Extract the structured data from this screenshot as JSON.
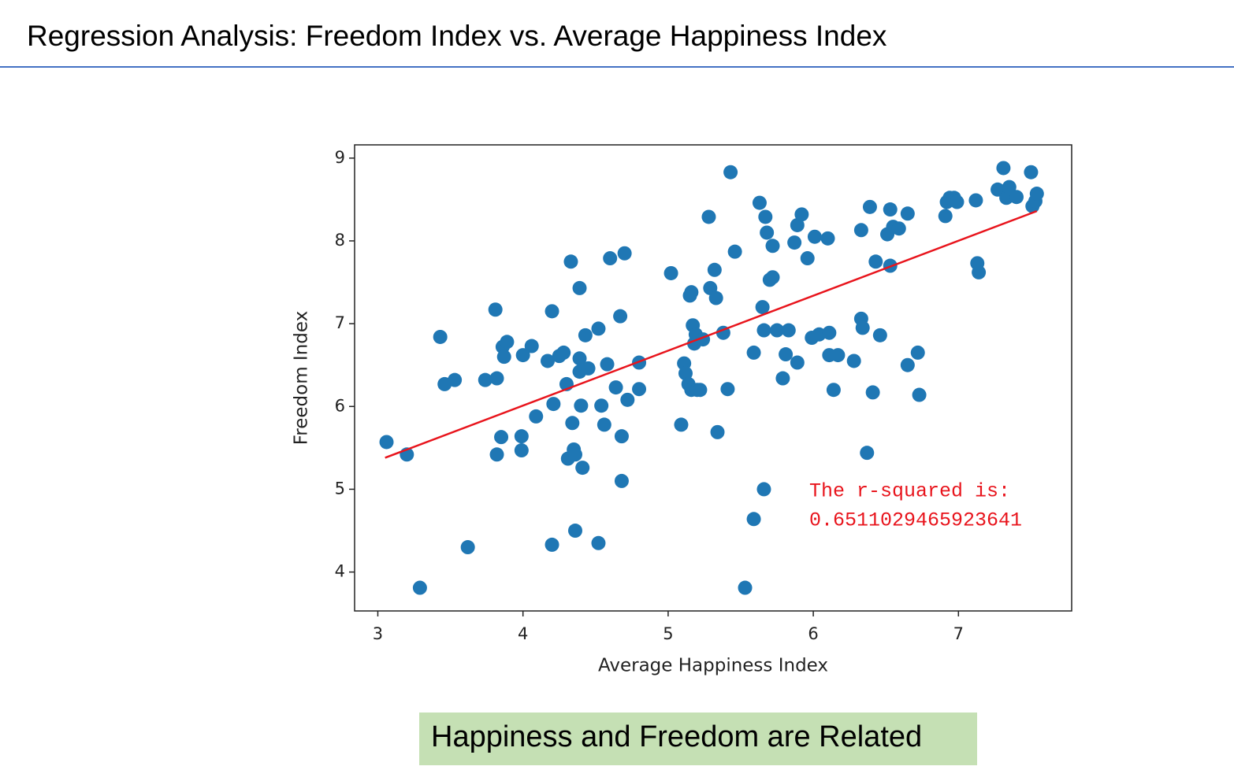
{
  "header": {
    "title": "Regression Analysis:  Freedom Index vs. Average Happiness Index"
  },
  "chart_data": {
    "type": "scatter",
    "x_label": "Average Happiness Index",
    "y_label": "Freedom Index",
    "xlim": [
      2.84,
      7.78
    ],
    "ylim": [
      3.53,
      9.16
    ],
    "xticks": [
      3,
      4,
      5,
      6,
      7
    ],
    "yticks": [
      4,
      5,
      6,
      7,
      8,
      9
    ],
    "color": "#1f77b4",
    "x": [
      3.06,
      3.2,
      3.29,
      3.43,
      3.46,
      3.53,
      3.62,
      3.74,
      3.81,
      3.82,
      3.82,
      3.85,
      3.86,
      3.87,
      3.89,
      3.99,
      3.99,
      4.0,
      4.06,
      4.09,
      4.17,
      4.2,
      4.2,
      4.21,
      4.25,
      4.28,
      4.3,
      4.31,
      4.33,
      4.34,
      4.35,
      4.36,
      4.36,
      4.39,
      4.39,
      4.39,
      4.4,
      4.41,
      4.43,
      4.45,
      4.52,
      4.52,
      4.54,
      4.56,
      4.58,
      4.6,
      4.64,
      4.67,
      4.68,
      4.68,
      4.7,
      4.72,
      4.8,
      4.8,
      5.02,
      5.09,
      5.11,
      5.12,
      5.14,
      5.15,
      5.16,
      5.16,
      5.17,
      5.18,
      5.19,
      5.2,
      5.22,
      5.24,
      5.28,
      5.29,
      5.32,
      5.33,
      5.34,
      5.38,
      5.41,
      5.43,
      5.46,
      5.53,
      5.59,
      5.59,
      5.63,
      5.65,
      5.66,
      5.66,
      5.67,
      5.68,
      5.7,
      5.72,
      5.72,
      5.75,
      5.79,
      5.81,
      5.83,
      5.87,
      5.89,
      5.89,
      5.92,
      5.96,
      5.99,
      6.01,
      6.04,
      6.1,
      6.11,
      6.11,
      6.14,
      6.17,
      6.28,
      6.33,
      6.33,
      6.34,
      6.37,
      6.39,
      6.41,
      6.43,
      6.46,
      6.51,
      6.53,
      6.53,
      6.55,
      6.59,
      6.65,
      6.65,
      6.72,
      6.73,
      6.91,
      6.92,
      6.94,
      6.97,
      6.99,
      7.12,
      7.13,
      7.14,
      7.27,
      7.31,
      7.33,
      7.35,
      7.4,
      7.5,
      7.51,
      7.53,
      7.54
    ],
    "y": [
      5.57,
      5.42,
      3.81,
      6.84,
      6.27,
      6.32,
      4.3,
      6.32,
      7.17,
      6.34,
      5.42,
      5.63,
      6.72,
      6.6,
      6.78,
      5.64,
      5.47,
      6.62,
      6.73,
      5.88,
      6.55,
      7.15,
      4.33,
      6.03,
      6.61,
      6.65,
      6.27,
      5.37,
      7.75,
      5.8,
      5.48,
      5.42,
      4.5,
      6.58,
      7.43,
      6.42,
      6.01,
      5.26,
      6.86,
      6.46,
      6.94,
      4.35,
      6.01,
      5.78,
      6.51,
      7.79,
      6.23,
      7.09,
      5.1,
      5.64,
      7.85,
      6.08,
      6.53,
      6.21,
      7.61,
      5.78,
      6.52,
      6.4,
      6.27,
      7.34,
      6.2,
      7.38,
      6.98,
      6.76,
      6.87,
      6.2,
      6.2,
      6.81,
      8.29,
      7.43,
      7.65,
      7.31,
      5.69,
      6.89,
      6.21,
      8.83,
      7.87,
      3.81,
      6.65,
      4.64,
      8.46,
      7.2,
      5.0,
      6.92,
      8.29,
      8.1,
      7.53,
      7.94,
      7.56,
      6.92,
      6.34,
      6.63,
      6.92,
      7.98,
      8.19,
      6.53,
      8.32,
      7.79,
      6.83,
      8.05,
      6.87,
      8.03,
      6.89,
      6.62,
      6.2,
      6.62,
      6.55,
      8.13,
      7.06,
      6.95,
      5.44,
      8.41,
      6.17,
      7.75,
      6.86,
      8.08,
      8.38,
      7.7,
      8.17,
      8.15,
      8.33,
      6.5,
      6.65,
      6.14,
      8.3,
      8.47,
      8.52,
      8.52,
      8.47,
      8.49,
      7.73,
      7.62,
      8.62,
      8.88,
      8.52,
      8.65,
      8.53,
      8.83,
      8.42,
      8.48,
      8.57
    ],
    "fit": {
      "x": [
        3.05,
        7.54
      ],
      "y": [
        5.38,
        8.36
      ],
      "color": "#e8141c"
    },
    "annotation": [
      "The r-squared is:",
      "0.6511029465923641"
    ]
  },
  "caption": "Happiness and Freedom are Related"
}
